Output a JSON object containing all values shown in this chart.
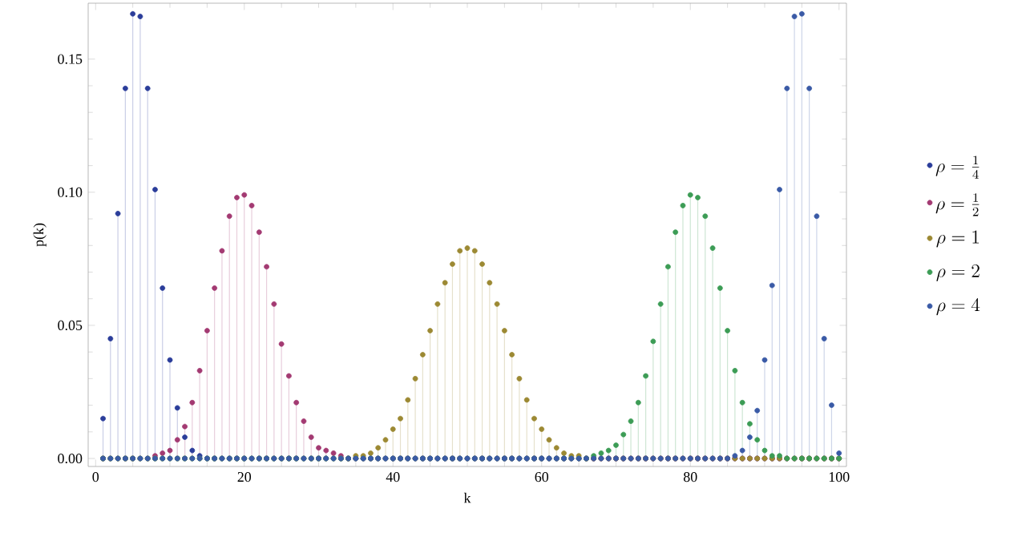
{
  "chart_data": {
    "type": "lollipop",
    "xlabel": "k",
    "ylabel": "p(k)",
    "x": [
      1,
      2,
      3,
      4,
      5,
      6,
      7,
      8,
      9,
      10,
      11,
      12,
      13,
      14,
      15,
      16,
      17,
      18,
      19,
      20,
      21,
      22,
      23,
      24,
      25,
      26,
      27,
      28,
      29,
      30,
      31,
      32,
      33,
      34,
      35,
      36,
      37,
      38,
      39,
      40,
      41,
      42,
      43,
      44,
      45,
      46,
      47,
      48,
      49,
      50,
      51,
      52,
      53,
      54,
      55,
      56,
      57,
      58,
      59,
      60,
      61,
      62,
      63,
      64,
      65,
      66,
      67,
      68,
      69,
      70,
      71,
      72,
      73,
      74,
      75,
      76,
      77,
      78,
      79,
      80,
      81,
      82,
      83,
      84,
      85,
      86,
      87,
      88,
      89,
      90,
      91,
      92,
      93,
      94,
      95,
      96,
      97,
      98,
      99,
      100
    ],
    "series": [
      {
        "name": "\\rho=\\frac{1}{4}",
        "color": "#2b3d9a",
        "values": [
          0.015,
          0.045,
          0.092,
          0.139,
          0.167,
          0.166,
          0.139,
          0.101,
          0.064,
          0.037,
          0.019,
          0.008,
          0.003,
          0.001,
          0,
          0,
          0,
          0,
          0,
          0,
          0,
          0,
          0,
          0,
          0,
          0,
          0,
          0,
          0,
          0,
          0,
          0,
          0,
          0,
          0,
          0,
          0,
          0,
          0,
          0,
          0,
          0,
          0,
          0,
          0,
          0,
          0,
          0,
          0,
          0,
          0,
          0,
          0,
          0,
          0,
          0,
          0,
          0,
          0,
          0,
          0,
          0,
          0,
          0,
          0,
          0,
          0,
          0,
          0,
          0,
          0,
          0,
          0,
          0,
          0,
          0,
          0,
          0,
          0,
          0,
          0,
          0,
          0,
          0,
          0,
          0,
          0,
          0,
          0,
          0,
          0,
          0,
          0,
          0,
          0,
          0,
          0,
          0,
          0,
          0
        ]
      },
      {
        "name": "\\rho=\\frac{1}{2}",
        "color": "#a33a72",
        "values": [
          0,
          0,
          0,
          0,
          0,
          0,
          0,
          0.001,
          0.002,
          0.003,
          0.007,
          0.012,
          0.021,
          0.033,
          0.048,
          0.064,
          0.078,
          0.091,
          0.098,
          0.099,
          0.095,
          0.085,
          0.072,
          0.058,
          0.043,
          0.031,
          0.021,
          0.014,
          0.008,
          0.004,
          0.003,
          0.002,
          0.001,
          0,
          0,
          0,
          0,
          0,
          0,
          0,
          0,
          0,
          0,
          0,
          0,
          0,
          0,
          0,
          0,
          0,
          0,
          0,
          0,
          0,
          0,
          0,
          0,
          0,
          0,
          0,
          0,
          0,
          0,
          0,
          0,
          0,
          0,
          0,
          0,
          0,
          0,
          0,
          0,
          0,
          0,
          0,
          0,
          0,
          0,
          0,
          0,
          0,
          0,
          0,
          0,
          0,
          0,
          0,
          0,
          0,
          0,
          0,
          0,
          0,
          0,
          0,
          0,
          0,
          0,
          0
        ]
      },
      {
        "name": "\\rho=1",
        "color": "#9c8933",
        "values": [
          0,
          0,
          0,
          0,
          0,
          0,
          0,
          0,
          0,
          0,
          0,
          0,
          0,
          0,
          0,
          0,
          0,
          0,
          0,
          0,
          0,
          0,
          0,
          0,
          0,
          0,
          0,
          0,
          0,
          0,
          0,
          0,
          0,
          0,
          0.001,
          0.001,
          0.002,
          0.004,
          0.007,
          0.011,
          0.015,
          0.022,
          0.03,
          0.039,
          0.048,
          0.058,
          0.066,
          0.073,
          0.078,
          0.079,
          0.078,
          0.073,
          0.066,
          0.058,
          0.048,
          0.039,
          0.03,
          0.022,
          0.015,
          0.011,
          0.007,
          0.004,
          0.002,
          0.001,
          0.001,
          0,
          0,
          0,
          0,
          0,
          0,
          0,
          0,
          0,
          0,
          0,
          0,
          0,
          0,
          0,
          0,
          0,
          0,
          0,
          0,
          0,
          0,
          0,
          0,
          0,
          0,
          0,
          0,
          0,
          0,
          0,
          0,
          0,
          0,
          0
        ]
      },
      {
        "name": "\\rho=2",
        "color": "#3c9c55",
        "values": [
          0,
          0,
          0,
          0,
          0,
          0,
          0,
          0,
          0,
          0,
          0,
          0,
          0,
          0,
          0,
          0,
          0,
          0,
          0,
          0,
          0,
          0,
          0,
          0,
          0,
          0,
          0,
          0,
          0,
          0,
          0,
          0,
          0,
          0,
          0,
          0,
          0,
          0,
          0,
          0,
          0,
          0,
          0,
          0,
          0,
          0,
          0,
          0,
          0,
          0,
          0,
          0,
          0,
          0,
          0,
          0,
          0,
          0,
          0,
          0,
          0,
          0,
          0,
          0,
          0,
          0,
          0.001,
          0.002,
          0.003,
          0.005,
          0.009,
          0.014,
          0.021,
          0.031,
          0.044,
          0.058,
          0.072,
          0.085,
          0.095,
          0.099,
          0.098,
          0.091,
          0.079,
          0.064,
          0.048,
          0.033,
          0.021,
          0.013,
          0.007,
          0.003,
          0.001,
          0.001,
          0,
          0,
          0,
          0,
          0,
          0,
          0,
          0
        ]
      },
      {
        "name": "\\rho=4",
        "color": "#3a5aa6",
        "values": [
          0,
          0,
          0,
          0,
          0,
          0,
          0,
          0,
          0,
          0,
          0,
          0,
          0,
          0,
          0,
          0,
          0,
          0,
          0,
          0,
          0,
          0,
          0,
          0,
          0,
          0,
          0,
          0,
          0,
          0,
          0,
          0,
          0,
          0,
          0,
          0,
          0,
          0,
          0,
          0,
          0,
          0,
          0,
          0,
          0,
          0,
          0,
          0,
          0,
          0,
          0,
          0,
          0,
          0,
          0,
          0,
          0,
          0,
          0,
          0,
          0,
          0,
          0,
          0,
          0,
          0,
          0,
          0,
          0,
          0,
          0,
          0,
          0,
          0,
          0,
          0,
          0,
          0,
          0,
          0,
          0,
          0,
          0,
          0,
          0,
          0.001,
          0.003,
          0.008,
          0.018,
          0.037,
          0.065,
          0.101,
          0.139,
          0.166,
          0.167,
          0.139,
          0.091,
          0.045,
          0.02,
          0.002
        ]
      }
    ],
    "xlim": [
      -1,
      101
    ],
    "ylim": [
      -0.003,
      0.171
    ],
    "xticks": [
      0,
      20,
      40,
      60,
      80,
      100
    ],
    "yticks": [
      {
        "value": 0,
        "label": "0.00"
      },
      {
        "value": 0.05,
        "label": "0.05"
      },
      {
        "value": 0.1,
        "label": "0.10"
      },
      {
        "value": 0.15,
        "label": "0.15"
      }
    ],
    "legend": "right",
    "grid": false
  }
}
